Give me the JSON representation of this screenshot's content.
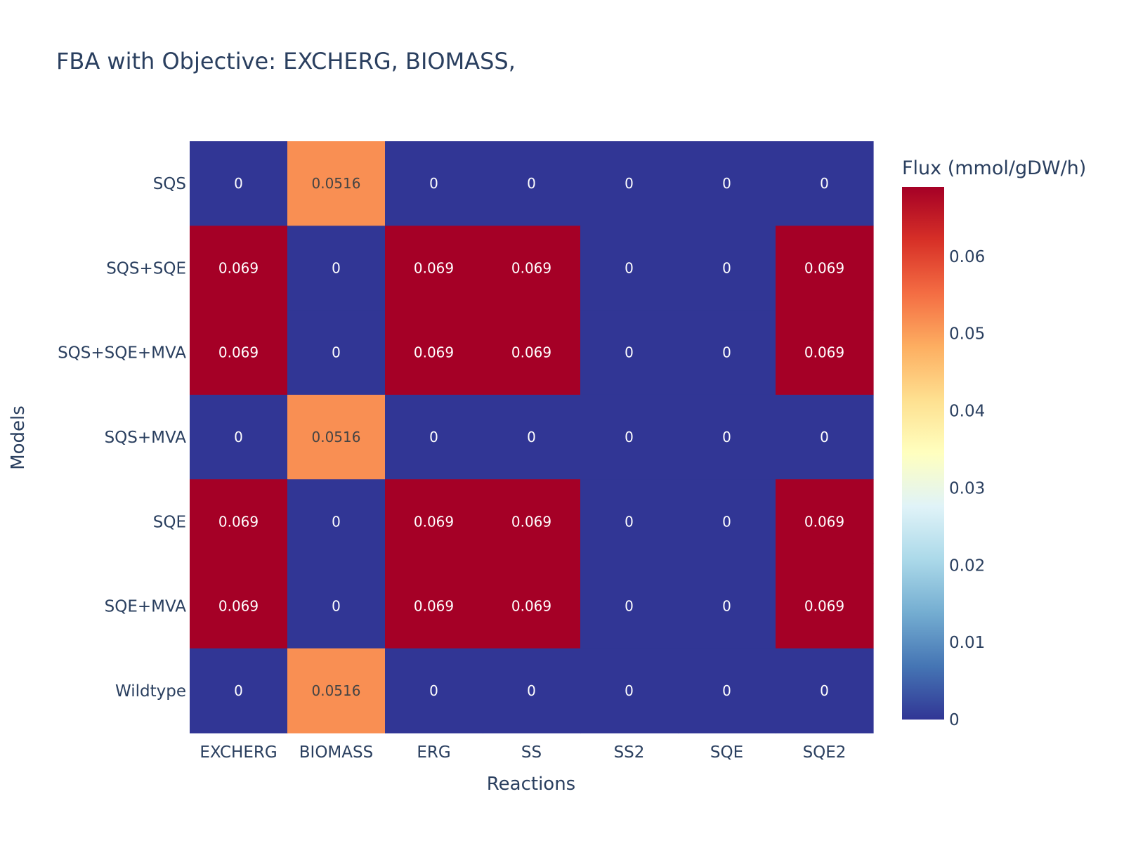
{
  "chart_data": {
    "type": "heatmap",
    "title": "FBA with Objective: EXCHERG, BIOMASS,",
    "xlabel": "Reactions",
    "ylabel": "Models",
    "x": [
      "EXCHERG",
      "BIOMASS",
      "ERG",
      "SS",
      "SS2",
      "SQE",
      "SQE2"
    ],
    "y": [
      "SQS",
      "SQS+SQE",
      "SQS+SQE+MVA",
      "SQS+MVA",
      "SQE",
      "SQE+MVA",
      "Wildtype"
    ],
    "z": [
      [
        0,
        0.0516,
        0,
        0,
        0,
        0,
        0
      ],
      [
        0.069,
        0,
        0.069,
        0.069,
        0,
        0,
        0.069
      ],
      [
        0.069,
        0,
        0.069,
        0.069,
        0,
        0,
        0.069
      ],
      [
        0,
        0.0516,
        0,
        0,
        0,
        0,
        0
      ],
      [
        0.069,
        0,
        0.069,
        0.069,
        0,
        0,
        0.069
      ],
      [
        0.069,
        0,
        0.069,
        0.069,
        0,
        0,
        0.069
      ],
      [
        0,
        0.0516,
        0,
        0,
        0,
        0,
        0
      ]
    ],
    "cell_labels": [
      [
        "0",
        "0.0516",
        "0",
        "0",
        "0",
        "0",
        "0"
      ],
      [
        "0.069",
        "0",
        "0.069",
        "0.069",
        "0",
        "0",
        "0.069"
      ],
      [
        "0.069",
        "0",
        "0.069",
        "0.069",
        "0",
        "0",
        "0.069"
      ],
      [
        "0",
        "0.0516",
        "0",
        "0",
        "0",
        "0",
        "0"
      ],
      [
        "0.069",
        "0",
        "0.069",
        "0.069",
        "0",
        "0",
        "0.069"
      ],
      [
        "0.069",
        "0",
        "0.069",
        "0.069",
        "0",
        "0",
        "0.069"
      ],
      [
        "0",
        "0.0516",
        "0",
        "0",
        "0",
        "0",
        "0"
      ]
    ],
    "zmin": 0,
    "zmax": 0.069,
    "colorscale_name": "RdYlBu (reversed)",
    "colorscale": [
      "#313695",
      "#4575b4",
      "#74add1",
      "#abd9e9",
      "#e0f3f8",
      "#ffffbf",
      "#fee090",
      "#fdae61",
      "#f46d43",
      "#d73027",
      "#a50026"
    ],
    "colorbar": {
      "title": "Flux (mmol/gDW/h)",
      "tickvals": [
        0,
        0.01,
        0.02,
        0.03,
        0.04,
        0.05,
        0.06
      ],
      "ticktext": [
        "0",
        "0.01",
        "0.02",
        "0.03",
        "0.04",
        "0.05",
        "0.06"
      ]
    },
    "grid": false
  }
}
